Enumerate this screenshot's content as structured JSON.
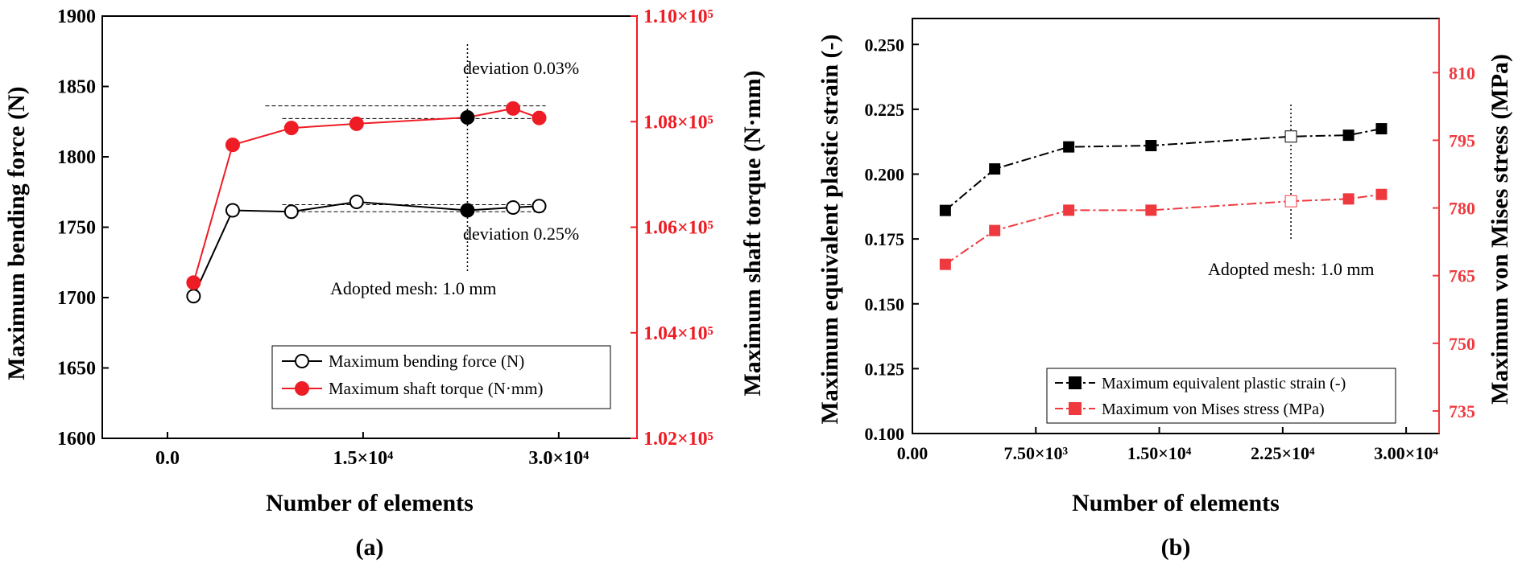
{
  "charts": [
    {
      "panel_label": "(a)",
      "xlabel": "Number of elements",
      "ylabel_left": "Maximum bending force (N)",
      "ylabel_right": "Maximum shaft torque (N·mm)",
      "annotations": {
        "deviation_top": "deviation 0.03%",
        "deviation_bottom": "deviation 0.25%",
        "adopted": "Adopted mesh: 1.0 mm"
      },
      "legend": [
        "Maximum bending force (N)",
        "Maximum shaft torque (N·mm)"
      ]
    },
    {
      "panel_label": "(b)",
      "xlabel": "Number of elements",
      "ylabel_left": "Maximum equivalent plastic strain (-)",
      "ylabel_right": "Maximum von Mises stress (MPa)",
      "annotations": {
        "adopted": "Adopted mesh: 1.0 mm"
      },
      "legend": [
        "Maximum equivalent plastic strain (-)",
        "Maximum von Mises stress (MPa)"
      ]
    }
  ],
  "chart_data": [
    {
      "type": "line",
      "xlim": [
        -5000,
        36000
      ],
      "x_ticks": [
        0,
        15000,
        30000
      ],
      "x_tick_labels": [
        "0.0",
        "1.5×10⁴",
        "3.0×10⁴"
      ],
      "ylim_left": [
        1600,
        1900
      ],
      "y_ticks_left": [
        1600,
        1650,
        1700,
        1750,
        1800,
        1850,
        1900
      ],
      "ylim_right": [
        102000,
        110000
      ],
      "y_ticks_right": [
        102000,
        104000,
        106000,
        108000,
        110000
      ],
      "y_tick_labels_right": [
        "1.02×10⁵",
        "1.04×10⁵",
        "1.06×10⁵",
        "1.08×10⁵",
        "1.10×10⁵"
      ],
      "colors": {
        "series1": "#000000",
        "series2": "#ee1c24"
      },
      "series": [
        {
          "name": "Maximum bending force (N)",
          "axis": "left",
          "marker": "open-circle",
          "x": [
            2000,
            5000,
            9500,
            14500,
            23000,
            26500,
            28500
          ],
          "y": [
            1701,
            1762,
            1761,
            1768,
            1762,
            1764,
            1765
          ],
          "filled_index": 4
        },
        {
          "name": "Maximum shaft torque (N·mm)",
          "axis": "right",
          "marker": "filled-circle",
          "x": [
            2000,
            5000,
            9500,
            14500,
            23000,
            26500,
            28500
          ],
          "y": [
            104950,
            107560,
            107880,
            107960,
            108080,
            108250,
            108070
          ]
        }
      ]
    },
    {
      "type": "line",
      "xlim": [
        0,
        32000
      ],
      "x_ticks": [
        0,
        7500,
        15000,
        22500,
        30000
      ],
      "x_tick_labels": [
        "0.00",
        "7.50×10³",
        "1.50×10⁴",
        "2.25×10⁴",
        "3.00×10⁴"
      ],
      "ylim_left": [
        0.1,
        0.26
      ],
      "y_ticks_left": [
        0.1,
        0.125,
        0.15,
        0.175,
        0.2,
        0.225,
        0.25
      ],
      "y_tick_labels_left": [
        "0.100",
        "0.125",
        "0.150",
        "0.175",
        "0.200",
        "0.225",
        "0.250"
      ],
      "ylim_right": [
        730,
        822
      ],
      "y_ticks_right": [
        735,
        750,
        765,
        780,
        795,
        810
      ],
      "colors": {
        "series1": "#000000",
        "series2": "#ee3a3f"
      },
      "series": [
        {
          "name": "Maximum equivalent plastic strain (-)",
          "axis": "left",
          "marker": "filled-square",
          "x": [
            2000,
            5000,
            9500,
            14500,
            23000,
            26500,
            28500
          ],
          "y": [
            0.186,
            0.202,
            0.2105,
            0.211,
            0.2145,
            0.215,
            0.2175
          ],
          "open_index": 4
        },
        {
          "name": "Maximum von Mises stress (MPa)",
          "axis": "right",
          "marker": "filled-square",
          "x": [
            2000,
            5000,
            9500,
            14500,
            23000,
            26500,
            28500
          ],
          "y": [
            767.5,
            775,
            779.5,
            779.5,
            781.5,
            782,
            783
          ],
          "open_index": 4
        }
      ]
    }
  ]
}
